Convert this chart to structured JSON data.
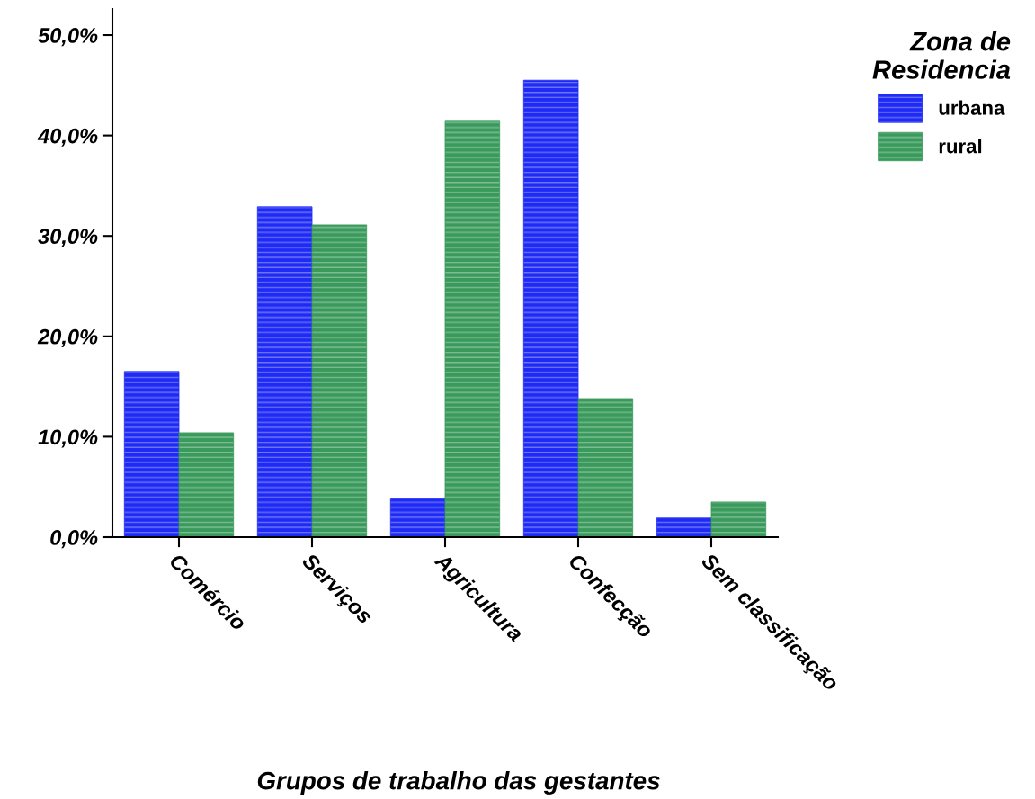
{
  "chart_data": {
    "type": "bar",
    "xlabel": "Grupos de trabalho das gestantes",
    "legend_title": "Zona de\nResidencia",
    "legend": "top right",
    "categories": [
      "Comércio",
      "Serviços",
      "Agricultura",
      "Confecção",
      "Sem classificação"
    ],
    "series": [
      {
        "name": "urbana",
        "color": "#1f2bf5",
        "values": [
          16.5,
          32.9,
          3.8,
          45.5,
          1.9
        ]
      },
      {
        "name": "rural",
        "color": "#3a9a5c",
        "values": [
          10.4,
          31.1,
          41.5,
          13.8,
          3.5
        ]
      }
    ],
    "ylim": [
      0,
      52.6
    ],
    "yticks": [
      {
        "value": 0,
        "label": "0,0%"
      },
      {
        "value": 10,
        "label": "10,0%"
      },
      {
        "value": 20,
        "label": "20,0%"
      },
      {
        "value": 30,
        "label": "30,0%"
      },
      {
        "value": 40,
        "label": "40,0%"
      },
      {
        "value": 50,
        "label": "50,0%"
      }
    ],
    "grid": false
  }
}
